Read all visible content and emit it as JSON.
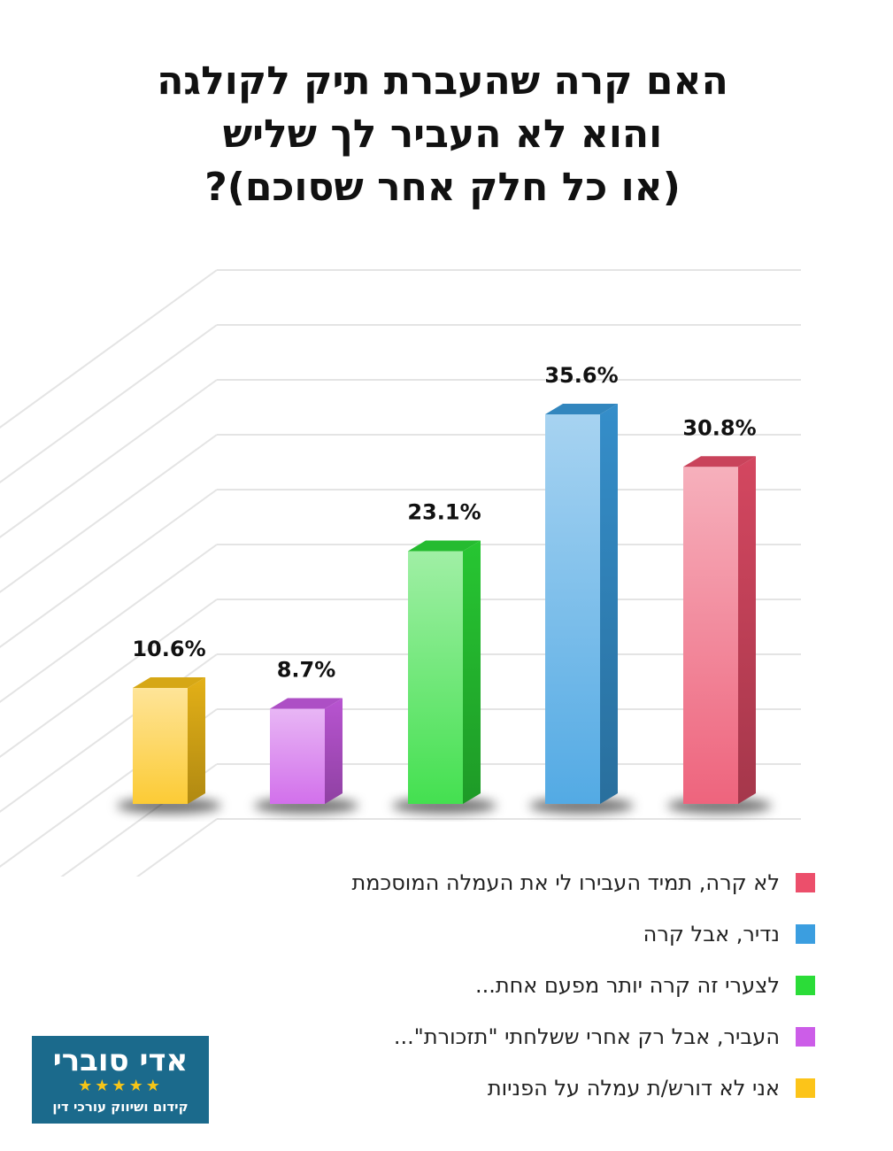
{
  "chart_data": {
    "type": "bar",
    "title": [
      "האם קרה שהעברת תיק לקולגה",
      "והוא לא העביר לך שליש",
      "(או כל חלק אחר שסוכם)?"
    ],
    "categories": [
      "אני לא דורש/ת עמלה על הפניות",
      "העביר, אבל רק אחרי ששלחתי \"תזכורת\"...",
      "לצערי זה קרה יותר מפעם אחת...",
      "נדיר, אבל קרה",
      "לא קרה, תמיד העבירו לי את העמלה המוסכמת"
    ],
    "values": [
      10.6,
      8.7,
      23.1,
      35.6,
      30.8
    ],
    "labels": [
      "10.6%",
      "8.7%",
      "23.1%",
      "35.6%",
      "30.8%"
    ],
    "colors": [
      "#fcc419",
      "#cc5de8",
      "#2bdc38",
      "#3b9ee0",
      "#ec4f6b"
    ],
    "ylim": [
      0,
      45
    ],
    "grid": true,
    "legend": "bottom-right"
  },
  "legend": [
    {
      "label": "לא קרה, תמיד העבירו לי את העמלה המוסכמת",
      "color": "#ec4f6b"
    },
    {
      "label": "נדיר, אבל קרה",
      "color": "#3b9ee0"
    },
    {
      "label": "לצערי זה קרה יותר מפעם אחת...",
      "color": "#2bdc38"
    },
    {
      "label": "העביר, אבל רק אחרי ששלחתי \"תזכורת\"...",
      "color": "#cc5de8"
    },
    {
      "label": "אני לא דורש/ת עמלה על הפניות",
      "color": "#fcc419"
    }
  ],
  "logo": {
    "name": "אדי סוברי",
    "stars": "★★★★★",
    "tagline": "קידום ושיווק עורכי דין"
  }
}
